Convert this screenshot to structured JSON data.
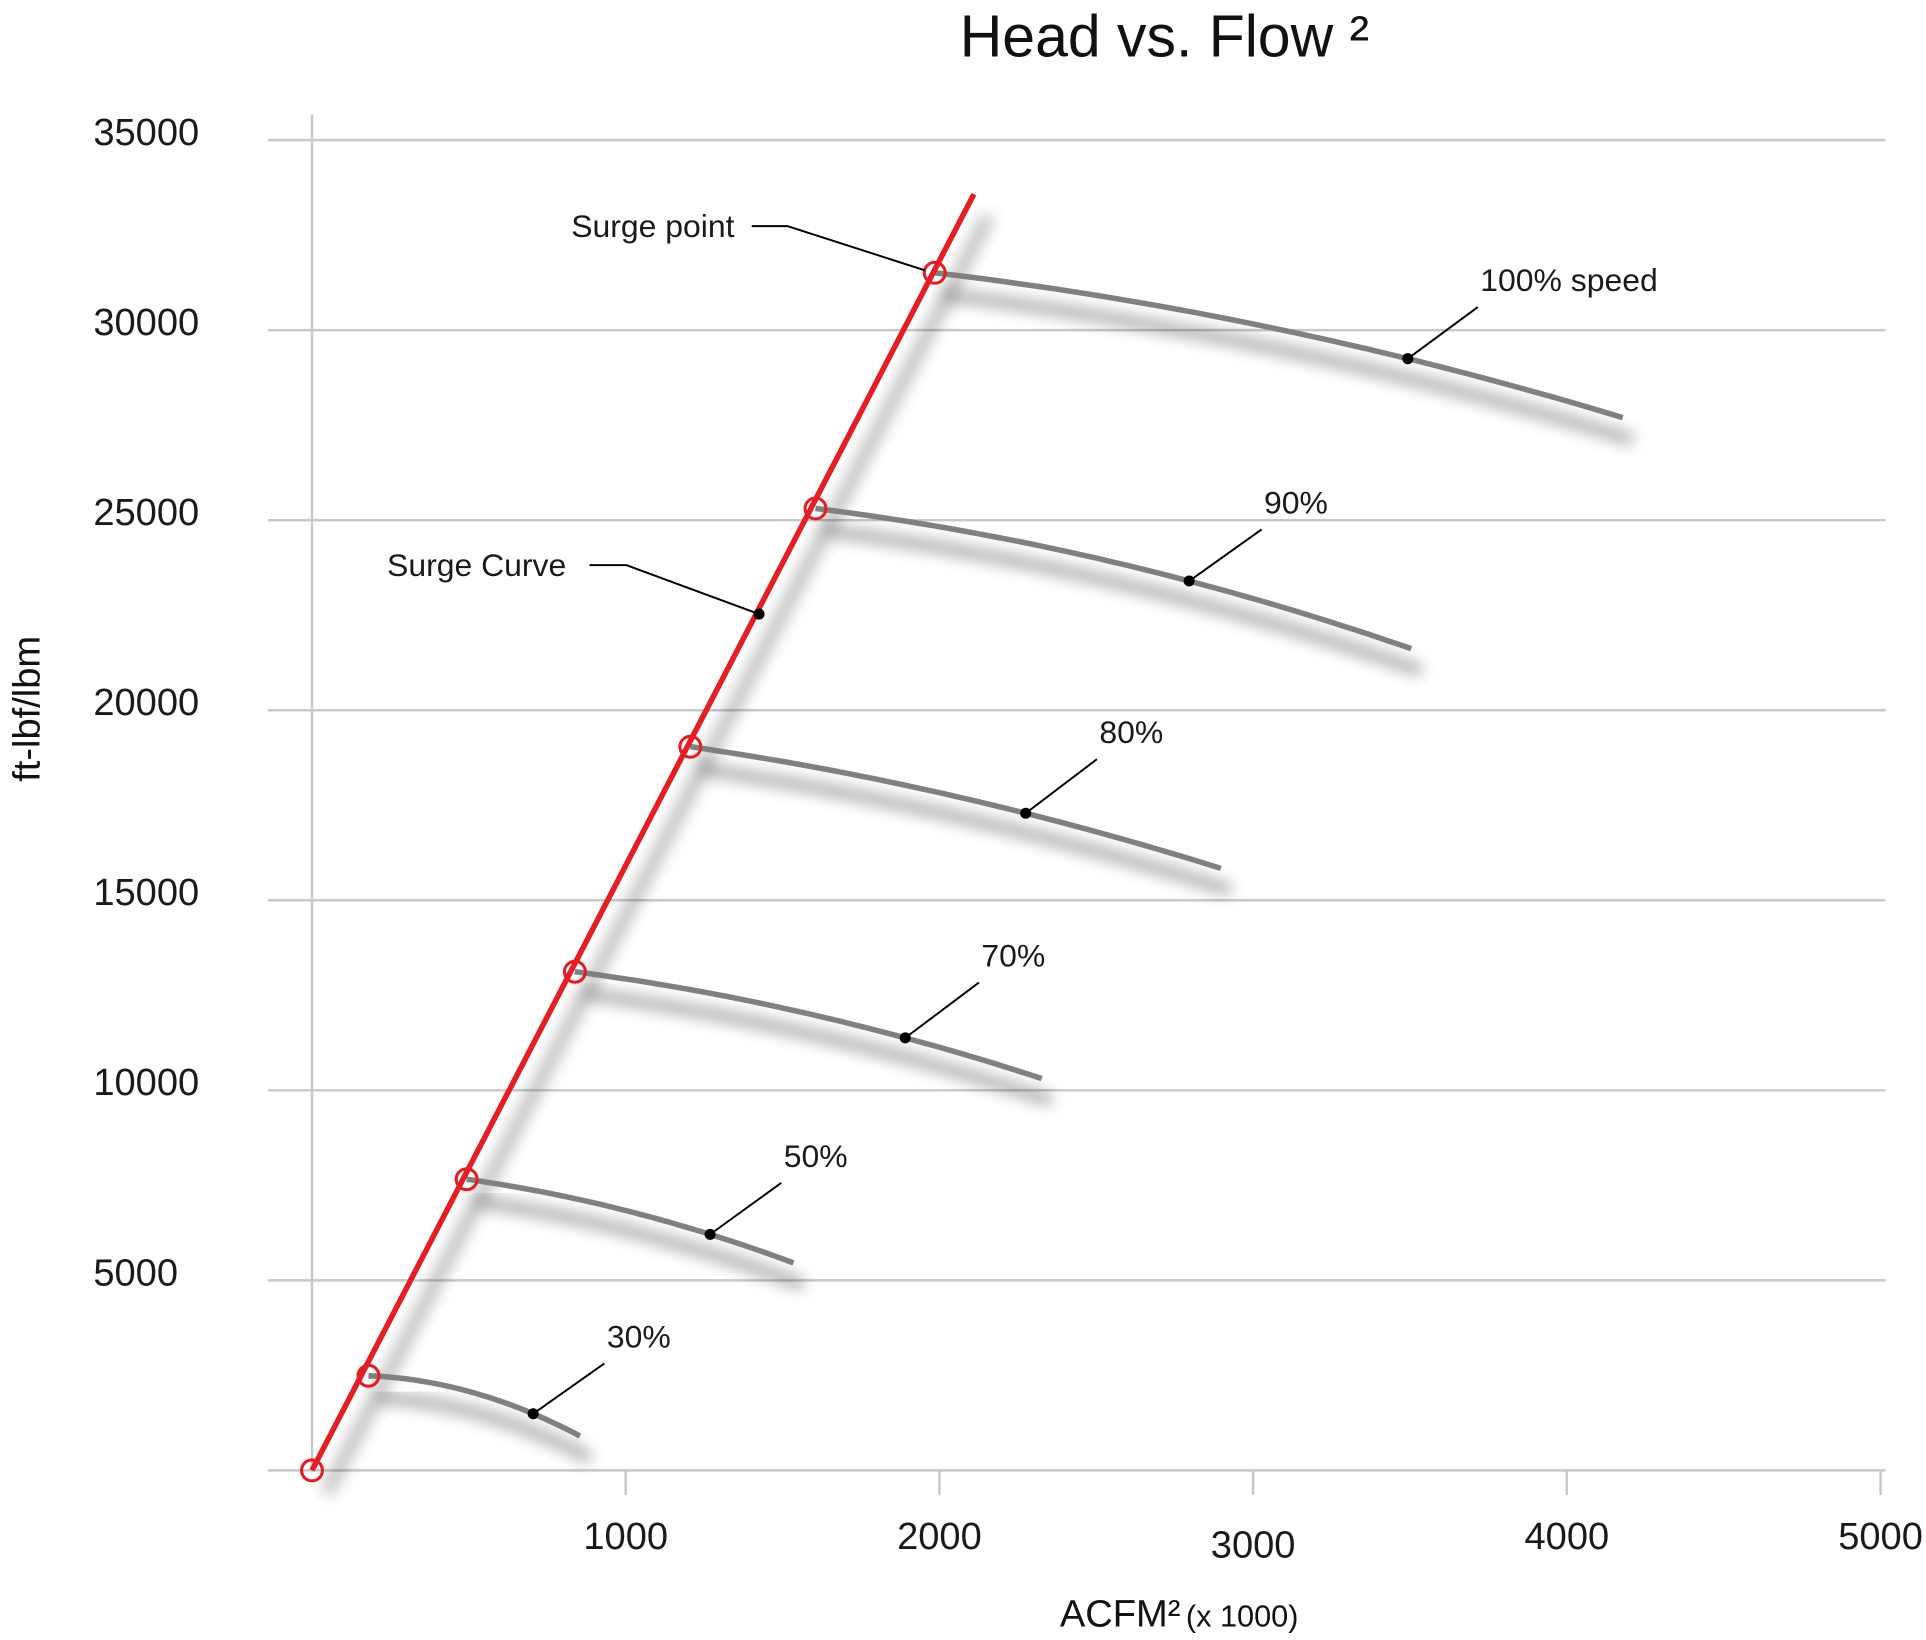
{
  "chart_data": {
    "type": "line",
    "title": "Head vs. Flow ²",
    "xlabel": "ACFM²",
    "xlabel_suffix": "(x 1000)",
    "ylabel": "ft-lbf/lbm",
    "xlim": [
      0,
      5000
    ],
    "ylim": [
      0,
      35000
    ],
    "x_ticks": [
      "1000",
      "2000",
      "3000",
      "4000",
      "5000"
    ],
    "y_ticks": [
      "5000",
      "10000",
      "15000",
      "20000",
      "25000",
      "30000",
      "35000"
    ],
    "grid": "horizontal",
    "colors": {
      "surge": "#e31e24",
      "speed": "#808083",
      "marker": "#000000",
      "grid": "#c8c8c8"
    },
    "surge_curve": {
      "label": "Surge Curve",
      "points": [
        [
          0,
          0
        ],
        [
          2110,
          33580
        ]
      ],
      "marker": [
        1425,
        22530
      ],
      "surge_points": [
        [
          0,
          0
        ],
        [
          180,
          2490
        ],
        [
          493,
          7660
        ],
        [
          838,
          13120
        ],
        [
          1206,
          19040
        ],
        [
          1605,
          25310
        ],
        [
          1985,
          31510
        ]
      ]
    },
    "surge_point_label": "Surge point",
    "series": [
      {
        "name": "30%",
        "points": [
          [
            180,
            2490
          ],
          [
            705,
            1490
          ],
          [
            854,
            905
          ]
        ]
      },
      {
        "name": "50%",
        "points": [
          [
            493,
            7660
          ],
          [
            1269,
            6210
          ],
          [
            1535,
            5460
          ]
        ]
      },
      {
        "name": "70%",
        "points": [
          [
            838,
            13120
          ],
          [
            1891,
            11380
          ],
          [
            2326,
            10310
          ]
        ]
      },
      {
        "name": "80%",
        "points": [
          [
            1206,
            19040
          ],
          [
            2275,
            17290
          ],
          [
            2897,
            15840
          ]
        ]
      },
      {
        "name": "90%",
        "points": [
          [
            1605,
            25310
          ],
          [
            2796,
            23400
          ],
          [
            3504,
            21620
          ]
        ]
      },
      {
        "name": "100% speed",
        "points": [
          [
            1985,
            31510
          ],
          [
            3493,
            29250
          ],
          [
            4178,
            27700
          ]
        ]
      }
    ]
  }
}
